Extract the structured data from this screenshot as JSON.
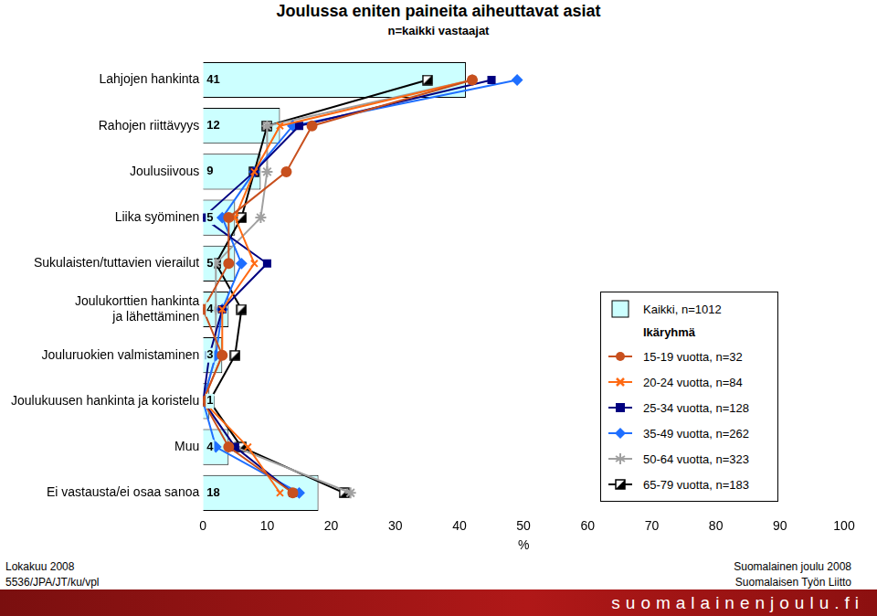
{
  "chart_data": {
    "type": "bar",
    "orientation": "horizontal",
    "title": "Joulussa eniten paineita aiheuttavat asiat",
    "subtitle": "n=kaikki vastaajat",
    "x_label": "%",
    "categories": [
      "Lahjojen hankinta",
      "Rahojen riittävyys",
      "Joulusiivous",
      "Liika syöminen",
      "Sukulaisten/tuttavien vierailut",
      "Joulukorttien hankinta ja lähettäminen",
      "Jouluruokien valmistaminen",
      "Joulukuusen hankinta ja koristelu",
      "Muu",
      "Ei vastausta/ei osaa sanoa"
    ],
    "series": [
      {
        "name": "Kaikki, n=1012",
        "type": "bar",
        "color": "#ccffff",
        "values": [
          41,
          12,
          9,
          5,
          5,
          4,
          3,
          1,
          4,
          18
        ]
      },
      {
        "name": "15-19 vuotta, n=32",
        "type": "line",
        "color": "#c8501e",
        "marker": "circle",
        "values": [
          42,
          17,
          13,
          4,
          4,
          0,
          3,
          0,
          4,
          14
        ]
      },
      {
        "name": "20-24 vuotta, n=84",
        "type": "line",
        "color": "#ff6a13",
        "marker": "cross",
        "values": [
          42,
          12,
          8,
          5,
          8,
          3,
          3,
          0,
          7,
          12
        ]
      },
      {
        "name": "25-34 vuotta, n=128",
        "type": "line",
        "color": "#000080",
        "marker": "square",
        "values": [
          45,
          15,
          8,
          0,
          10,
          3,
          1,
          0,
          5,
          14
        ]
      },
      {
        "name": "35-49 vuotta, n=262",
        "type": "line",
        "color": "#1f6fff",
        "marker": "diamond",
        "values": [
          49,
          14,
          8,
          3,
          6,
          3,
          2,
          0,
          2,
          15
        ]
      },
      {
        "name": "50-64 vuotta, n=323",
        "type": "line",
        "color": "#a0a0a0",
        "marker": "star",
        "values": [
          42,
          10,
          10,
          9,
          2,
          2,
          2,
          0,
          5,
          23
        ]
      },
      {
        "name": "65-79 vuotta, n=183",
        "type": "line",
        "color": "#000000",
        "marker": "half_square",
        "values": [
          35,
          10,
          8,
          6,
          2,
          6,
          5,
          1,
          6,
          22
        ]
      }
    ],
    "legend": "right",
    "legend_title": "Ikäryhmä",
    "data_labels": true,
    "grid": false,
    "xlim": [
      0,
      100
    ],
    "xticks": [
      0,
      10,
      20,
      30,
      40,
      50,
      60,
      70,
      80,
      90,
      100
    ],
    "footer": {
      "left": [
        "Lokakuu 2008",
        "5536/JPA/JT/ku/vpl"
      ],
      "right": [
        "Suomalainen joulu 2008",
        "Suomalaisen Työn Liitto"
      ],
      "banner": "suomalainenjoulu.fi"
    }
  }
}
